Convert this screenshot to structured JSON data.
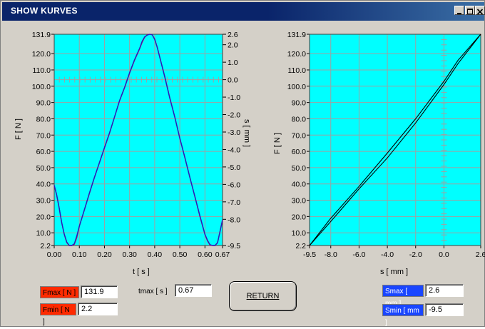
{
  "window": {
    "title": "SHOW KURVES"
  },
  "left_chart": {
    "y_ticks": [
      "131.9",
      "120.0",
      "110.0",
      "100.0",
      "90.0",
      "80.0",
      "70.0",
      "60.0",
      "50.0",
      "40.0",
      "30.0",
      "20.0",
      "10.0",
      "2.2"
    ],
    "y2_ticks": [
      "2.6",
      "2.0",
      "1.0",
      "0.0",
      "-1.0",
      "-2.0",
      "-3.0",
      "-4.0",
      "-5.0",
      "-6.0",
      "-7.0",
      "-8.0",
      "-9.5"
    ],
    "x_ticks": [
      "0.00",
      "0.10",
      "0.20",
      "0.30",
      "0.40",
      "0.50",
      "0.60",
      "0.67"
    ],
    "ylabel": "F [ N ]",
    "y2label": "s [ mm ]",
    "xlabel": "t [ s ]"
  },
  "right_chart": {
    "y_ticks": [
      "131.9",
      "120.0",
      "110.0",
      "100.0",
      "90.0",
      "80.0",
      "70.0",
      "60.0",
      "50.0",
      "40.0",
      "30.0",
      "20.0",
      "10.0",
      "2.2"
    ],
    "x_ticks": [
      "-9.5",
      "-8.0",
      "-6.0",
      "-4.0",
      "-2.0",
      "0.0",
      "2.6"
    ],
    "ylabel": "F [ N ]",
    "xlabel": "s [ mm ]"
  },
  "chart_data": [
    {
      "type": "line",
      "xlim": [
        0,
        0.67
      ],
      "ylim": [
        2.2,
        131.9
      ],
      "y2lim": [
        -9.5,
        2.6
      ],
      "grid": true,
      "series": [
        {
          "axis": "y",
          "color": "#e0004a",
          "x": [
            0.0,
            0.01,
            0.02,
            0.03,
            0.04,
            0.05,
            0.06,
            0.07,
            0.08,
            0.09,
            0.1,
            0.12,
            0.14,
            0.16,
            0.18,
            0.2,
            0.22,
            0.24,
            0.26,
            0.28,
            0.3,
            0.32,
            0.34,
            0.35,
            0.36,
            0.37,
            0.38,
            0.39,
            0.4,
            0.41,
            0.42,
            0.44,
            0.46,
            0.48,
            0.5,
            0.52,
            0.54,
            0.56,
            0.58,
            0.6,
            0.61,
            0.62,
            0.63,
            0.64,
            0.65,
            0.66,
            0.67
          ],
          "y": [
            39,
            33,
            25,
            16,
            9,
            4,
            2.2,
            2.2,
            3,
            7,
            14,
            24,
            34,
            44,
            53,
            62,
            71,
            81,
            91,
            99,
            108,
            116,
            123,
            127,
            130,
            131.5,
            131.9,
            131.6,
            129,
            124,
            118,
            106,
            93,
            81,
            68,
            56,
            44,
            32,
            20,
            9,
            5,
            2.5,
            2.2,
            2.2,
            4,
            11,
            18
          ]
        },
        {
          "axis": "y2",
          "color": "#2020c0",
          "x": [
            0.0,
            0.01,
            0.02,
            0.03,
            0.04,
            0.05,
            0.06,
            0.07,
            0.08,
            0.09,
            0.1,
            0.12,
            0.14,
            0.16,
            0.18,
            0.2,
            0.22,
            0.24,
            0.26,
            0.28,
            0.3,
            0.32,
            0.34,
            0.35,
            0.36,
            0.37,
            0.38,
            0.39,
            0.4,
            0.41,
            0.42,
            0.44,
            0.46,
            0.48,
            0.5,
            0.52,
            0.54,
            0.56,
            0.58,
            0.6,
            0.61,
            0.62,
            0.63,
            0.64,
            0.65,
            0.66,
            0.67
          ],
          "y": [
            -6.05,
            -6.6,
            -7.35,
            -8.2,
            -8.85,
            -9.3,
            -9.5,
            -9.5,
            -9.4,
            -8.95,
            -8.4,
            -7.45,
            -6.5,
            -5.6,
            -4.75,
            -3.9,
            -3.05,
            -2.15,
            -1.2,
            -0.45,
            0.4,
            1.15,
            1.8,
            2.2,
            2.45,
            2.55,
            2.6,
            2.57,
            2.3,
            1.85,
            1.3,
            0.15,
            -1.05,
            -2.15,
            -3.35,
            -4.45,
            -5.6,
            -6.7,
            -7.8,
            -8.85,
            -9.2,
            -9.45,
            -9.5,
            -9.5,
            -9.35,
            -8.7,
            -8.05
          ]
        }
      ]
    },
    {
      "type": "line",
      "xlim": [
        -9.5,
        2.6
      ],
      "ylim": [
        2.2,
        131.9
      ],
      "grid": true,
      "series": [
        {
          "color": "#000000",
          "x": [
            -9.5,
            -8,
            -6,
            -4,
            -2,
            0,
            1,
            2.6
          ],
          "y": [
            2.2,
            19,
            38.5,
            59,
            80,
            103,
            116,
            131.9
          ]
        },
        {
          "color": "#000000",
          "x": [
            -9.5,
            -8,
            -6,
            -4,
            -2,
            0,
            1,
            2.6
          ],
          "y": [
            2.2,
            17,
            37,
            56,
            77.5,
            101,
            114,
            131.9
          ]
        }
      ]
    }
  ],
  "readouts": {
    "fmax_label": "Fmax [ N ]",
    "fmax_value": "131.9",
    "fmin_label": "Fmin [ N ]",
    "fmin_value": "2.2",
    "tmax_label": "tmax [ s ]",
    "tmax_value": "0.67",
    "smax_label": "Smax [ mm ]",
    "smax_value": "2.6",
    "smin_label": "Smin [ mm ]",
    "smin_value": "-9.5"
  },
  "return_label": "RETURN"
}
